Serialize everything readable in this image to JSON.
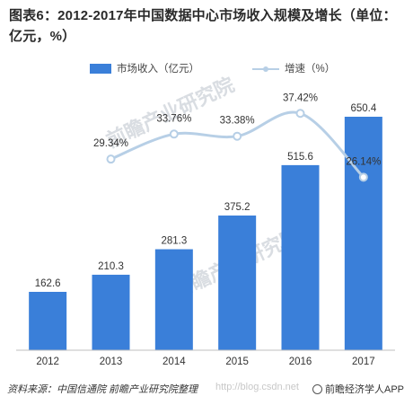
{
  "title": "图表6：2012-2017年中国数据中心市场收入规模及增长（单位：亿元，%）",
  "legend": {
    "bar_label": "市场收入（亿元）",
    "line_label": "增速（%）"
  },
  "footer": {
    "source": "资料来源：中国信通院 前瞻产业研究院整理",
    "url_watermark": "http://blog.csdn.net",
    "brand": "前瞻经济学人APP"
  },
  "watermark": {
    "text": "前瞻产业研究院"
  },
  "colors": {
    "bar": "#3a7fd9",
    "line": "#b7cfe6",
    "axis": "#bfbfbf"
  },
  "chart_data": {
    "type": "bar",
    "title": "图表6：2012-2017年中国数据中心市场收入规模及增长（单位：亿元，%）",
    "categories": [
      "2012",
      "2013",
      "2014",
      "2015",
      "2016",
      "2017"
    ],
    "series": [
      {
        "name": "市场收入（亿元）",
        "type": "bar",
        "values": [
          162.6,
          210.3,
          281.3,
          375.2,
          515.6,
          650.4
        ],
        "labels": [
          "162.6",
          "210.3",
          "281.3",
          "375.2",
          "515.6",
          "650.4"
        ]
      },
      {
        "name": "增速（%）",
        "type": "line",
        "smooth": true,
        "x": [
          "2013",
          "2014",
          "2015",
          "2016",
          "2017"
        ],
        "values": [
          29.34,
          33.76,
          33.38,
          37.42,
          26.14
        ],
        "labels": [
          "29.34%",
          "33.76%",
          "33.38%",
          "37.42%",
          "26.14%"
        ]
      }
    ],
    "legend_position": "top-center",
    "grid": false
  }
}
